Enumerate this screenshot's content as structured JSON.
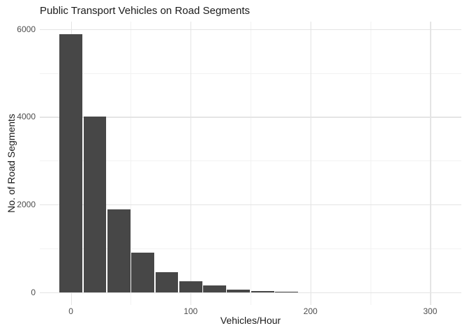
{
  "chart_data": {
    "type": "bar",
    "subtype": "histogram",
    "title": "Public Transport Vehicles on Road Segments",
    "xlabel": "Vehicles/Hour",
    "ylabel": "No. of Road Segments",
    "bin_width": 20,
    "bin_centers": [
      0,
      20,
      40,
      60,
      80,
      100,
      120,
      140,
      160,
      180
    ],
    "counts": [
      5880,
      4000,
      1880,
      900,
      450,
      250,
      145,
      55,
      20,
      10
    ],
    "x_ticks": [
      0,
      100,
      200,
      300
    ],
    "x_minor_ticks": [
      50,
      150,
      250
    ],
    "y_ticks": [
      0,
      2000,
      4000,
      6000
    ],
    "y_minor_ticks": [
      1000,
      3000,
      5000
    ],
    "xlim": [
      -26,
      326
    ],
    "ylim": [
      -294,
      6171
    ],
    "grid": true,
    "legend": "none",
    "colors": {
      "bar_fill": "#474747",
      "grid_major": "#e4e4e4",
      "grid_minor": "#f2f2f2",
      "tick_label": "#4d4d4d",
      "title_text": "#1a1a1a",
      "axis_title_text": "#1a1a1a",
      "background": "#ffffff"
    }
  }
}
